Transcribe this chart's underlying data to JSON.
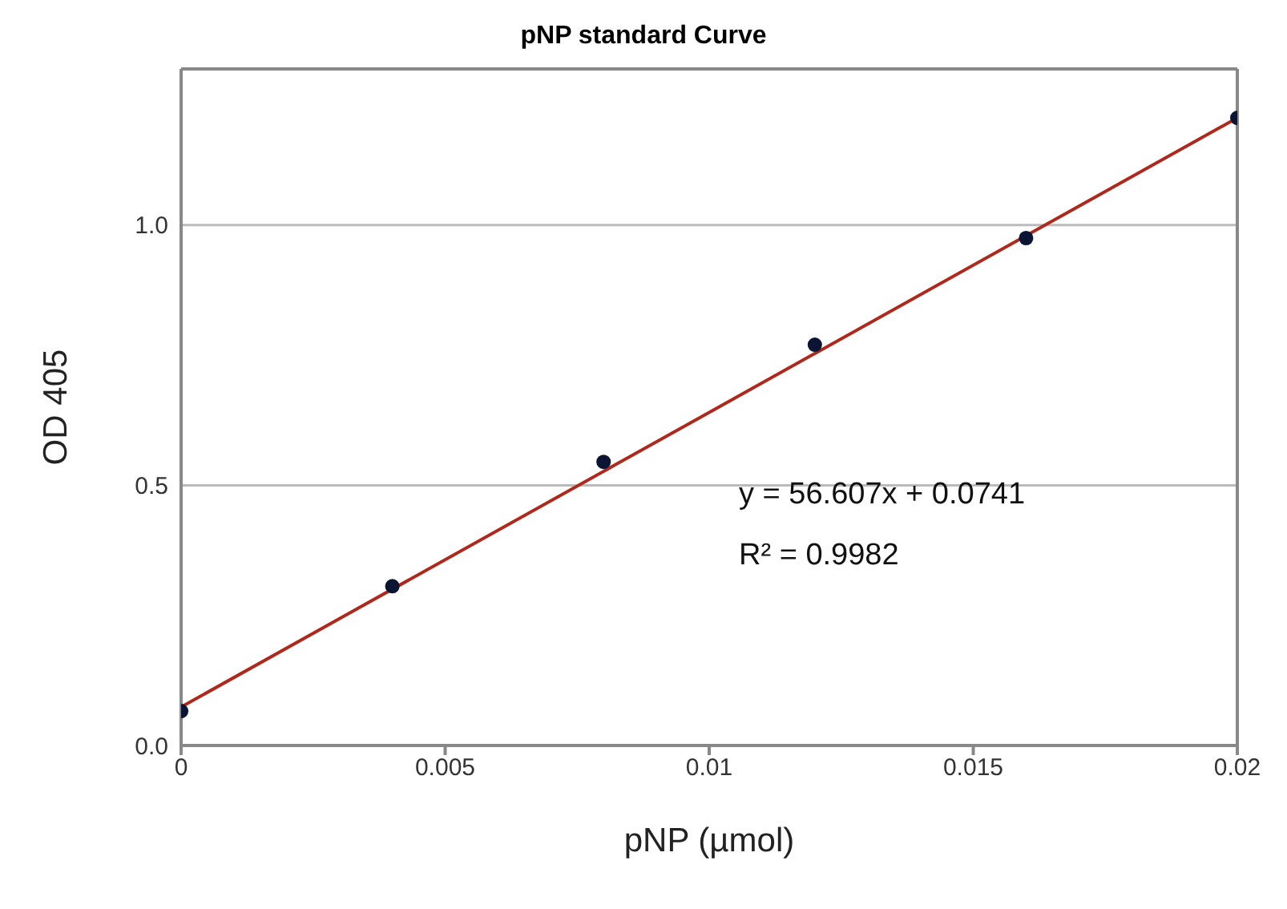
{
  "chart_data": {
    "type": "scatter",
    "title": "pNP standard Curve",
    "xlabel": "pNP (µmol)",
    "ylabel": "OD 405",
    "series": [
      {
        "marker": "circle",
        "color": "#0b1433",
        "x": [
          0,
          0.004,
          0.008,
          0.012,
          0.016,
          0.02
        ],
        "values": [
          0.066,
          0.306,
          0.545,
          0.77,
          0.975,
          1.206
        ]
      },
      {
        "type": "line",
        "marker": "none",
        "color": "#b0281c",
        "x": [
          0,
          0.02
        ],
        "values": [
          0.074,
          1.206
        ]
      }
    ],
    "xlim": [
      0,
      0.02
    ],
    "xticks": [
      0,
      0.005,
      0.01,
      0.015,
      0.02
    ],
    "ylim": [
      0,
      1.3
    ],
    "yticks": [
      {
        "value": 0,
        "label": "0.0"
      },
      {
        "value": 0.5,
        "label": "0.5"
      },
      {
        "value": 1,
        "label": "1.0"
      }
    ],
    "grid": "y",
    "annotations": [
      "y = 56.607x + 0.0741",
      "R² = 0.9982"
    ]
  }
}
